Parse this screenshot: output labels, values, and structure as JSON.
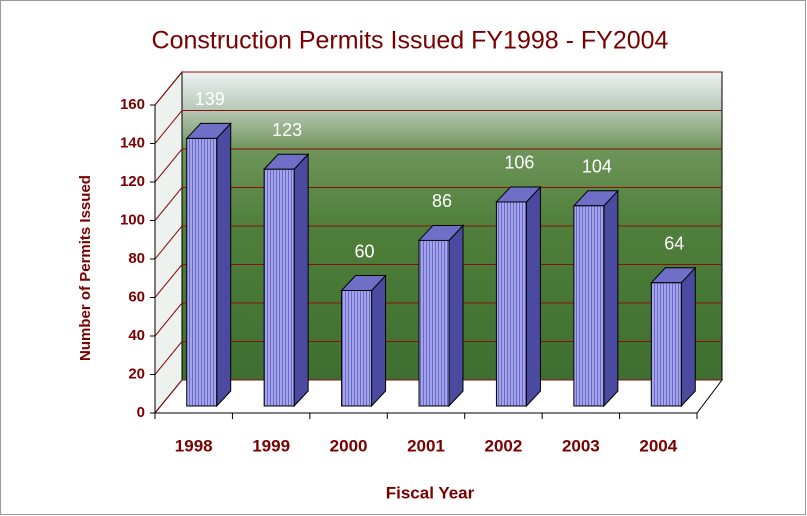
{
  "chart_data": {
    "type": "bar3d",
    "title": "Construction Permits Issued FY1998 - FY2004",
    "x_label": "Fiscal Year",
    "y_label": "Number of Permits Issued",
    "categories": [
      "1998",
      "1999",
      "2000",
      "2001",
      "2002",
      "2003",
      "2004"
    ],
    "values": [
      139,
      123,
      60,
      86,
      106,
      104,
      64
    ],
    "color": "#9a9ae8",
    "ylim": [
      0,
      160
    ],
    "yticks": [
      0,
      20,
      40,
      60,
      80,
      100,
      120,
      140,
      160
    ],
    "grid": true
  }
}
